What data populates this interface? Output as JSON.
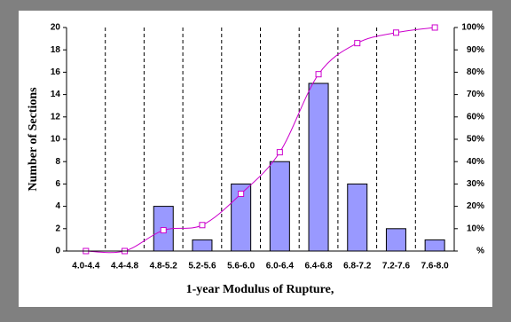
{
  "chart_data": {
    "type": "bar",
    "x_label": "1-year Modulus of Rupture,",
    "y_label": "Number of Sections",
    "categories": [
      "4.0-4.4",
      "4.4-4.8",
      "4.8-5.2",
      "5.2-5.6",
      "5.6-6.0",
      "6.0-6.4",
      "6.4-6.8",
      "6.8-7.2",
      "7.2-7.6",
      "7.6-8.0"
    ],
    "series": [
      {
        "type": "bar",
        "color": "#9999ff",
        "values": [
          0,
          0,
          4,
          1,
          6,
          8,
          15,
          6,
          2,
          1
        ]
      },
      {
        "type": "line",
        "axis": "y2",
        "color": "#cc00cc",
        "values": [
          0,
          0,
          9.3,
          11.6,
          25.6,
          44.2,
          79.1,
          93.0,
          97.7,
          100
        ]
      }
    ],
    "ylim": [
      0,
      20
    ],
    "yticks": [
      0,
      2,
      4,
      6,
      8,
      10,
      12,
      14,
      16,
      18,
      20
    ],
    "y2lim": [
      0,
      100
    ],
    "y2ticks": [
      {
        "value": 0,
        "label": "%"
      },
      {
        "value": 10,
        "label": "10%"
      },
      {
        "value": 20,
        "label": "20%"
      },
      {
        "value": 30,
        "label": "30%"
      },
      {
        "value": 40,
        "label": "40%"
      },
      {
        "value": 50,
        "label": "50%"
      },
      {
        "value": 60,
        "label": "60%"
      },
      {
        "value": 70,
        "label": "70%"
      },
      {
        "value": 80,
        "label": "80%"
      },
      {
        "value": 90,
        "label": "90%"
      },
      {
        "value": 100,
        "label": "100%"
      }
    ],
    "category_dividers": true
  }
}
